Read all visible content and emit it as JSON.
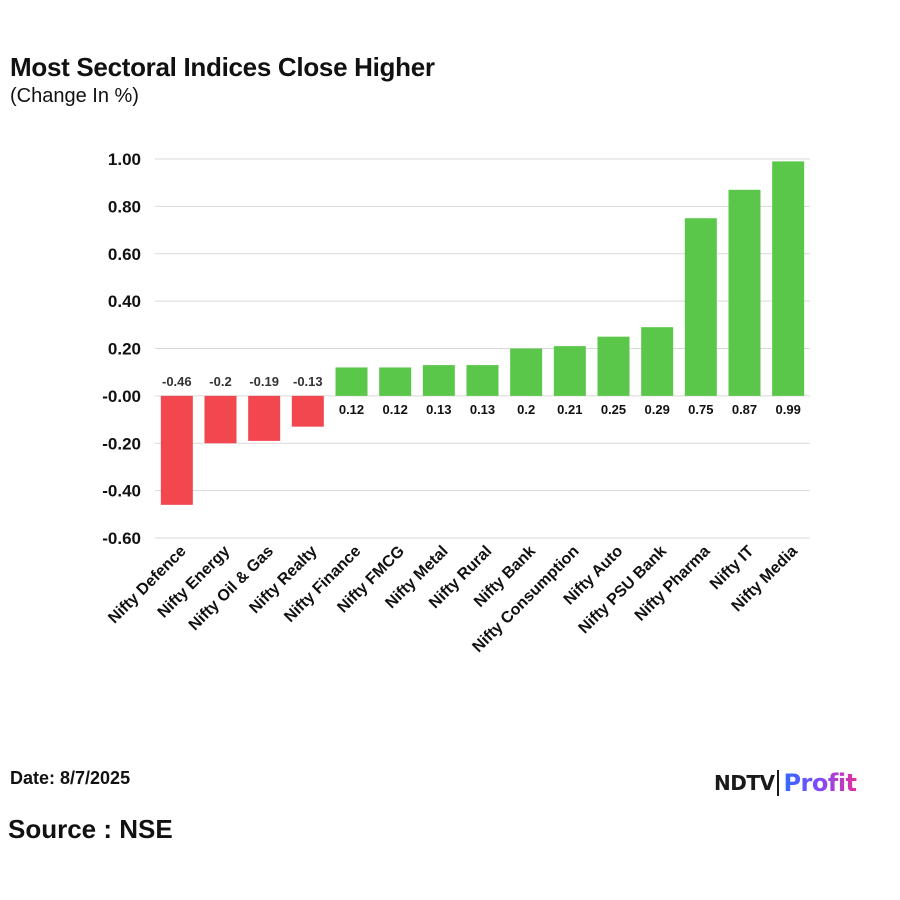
{
  "header": {
    "title": "Most Sectoral Indices Close Higher",
    "subtitle": "(Change In %)"
  },
  "footer": {
    "date": "Date: 8/7/2025",
    "source": "Source : NSE",
    "logo_ndtv": "NDTV",
    "logo_profit": "Profit"
  },
  "colors": {
    "positive": "#5ac74a",
    "negative": "#f2474f",
    "grid": "#d9d9d9",
    "axis_text": "#111111"
  },
  "chart_data": {
    "type": "bar",
    "title": "Most Sectoral Indices Close Higher",
    "subtitle": "(Change In %)",
    "xlabel": "",
    "ylabel": "",
    "ylim": [
      -0.6,
      1.0
    ],
    "ytick_step": 0.2,
    "yticks": [
      "1.00",
      "0.80",
      "0.60",
      "0.40",
      "0.20",
      "-0.00",
      "-0.20",
      "-0.40",
      "-0.60"
    ],
    "grid": true,
    "legend": "none",
    "categories": [
      "Nifty Defence",
      "Nifty Energy",
      "Nifty Oil & Gas",
      "Nifty Realty",
      "Nifty Finance",
      "Nifty FMCG",
      "Nifty Metal",
      "Nifty Rural",
      "Nifty Bank",
      "Nifty Consumption",
      "Nifty Auto",
      "Nifty PSU Bank",
      "Nifty Pharma",
      "Nifty IT",
      "Nifty Media"
    ],
    "values": [
      -0.46,
      -0.2,
      -0.19,
      -0.13,
      0.12,
      0.12,
      0.13,
      0.13,
      0.2,
      0.21,
      0.25,
      0.29,
      0.75,
      0.87,
      0.99
    ],
    "labels": [
      "-0.46",
      "-0.2",
      "-0.19",
      "-0.13",
      "0.12",
      "0.12",
      "0.13",
      "0.13",
      "0.2",
      "0.21",
      "0.25",
      "0.29",
      "0.75",
      "0.87",
      "0.99"
    ]
  }
}
